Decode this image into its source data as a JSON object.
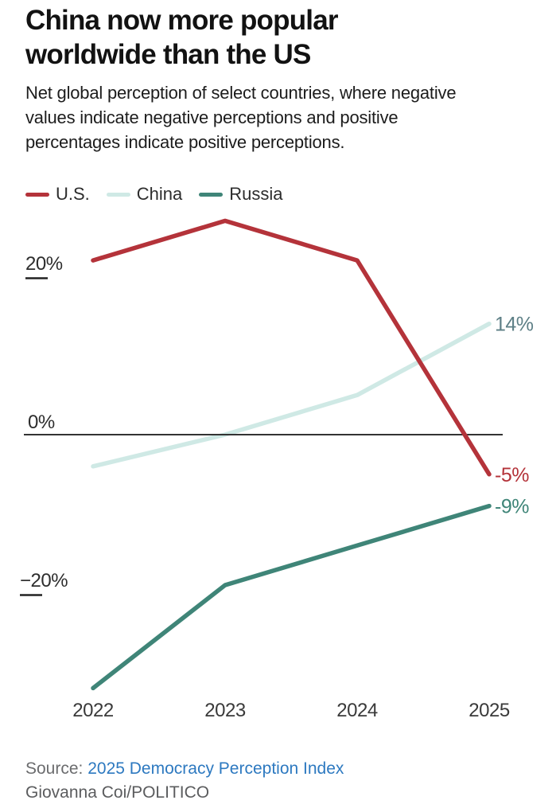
{
  "header": {
    "title_lines": [
      "China now more popular",
      "worldwide than the US"
    ],
    "subtitle": "Net global perception of select countries, where negative values indicate negative perceptions and positive percentages indicate positive perceptions."
  },
  "chart_data": {
    "type": "line",
    "title": "China now more popular worldwide than the US",
    "categories": [
      "2022",
      "2023",
      "2024",
      "2025"
    ],
    "series": [
      {
        "name": "U.S.",
        "color": "#b4333a",
        "label_color": "#b4333a",
        "values": [
          22,
          27,
          22,
          -5
        ],
        "end_label": "-5%"
      },
      {
        "name": "China",
        "color": "#cfe9e5",
        "label_color": "#5d7f86",
        "values": [
          -4,
          0,
          5,
          14
        ],
        "end_label": "14%"
      },
      {
        "name": "Russia",
        "color": "#3f8578",
        "label_color": "#3f8578",
        "values": [
          -32,
          -19,
          -14,
          -9
        ],
        "end_label": "-9%"
      }
    ],
    "yticks": [
      {
        "value": 20,
        "label": "20%"
      },
      {
        "value": 0,
        "label": "0%"
      },
      {
        "value": -20,
        "label": "−20%"
      }
    ],
    "ylim": [
      -35,
      30
    ],
    "xlabel": "",
    "ylabel": "",
    "grid": "zero-line-only",
    "legend_position": "top-left",
    "axis_color": "#333333"
  },
  "footer": {
    "source_prefix": "Source:",
    "source_link": "2025 Democracy Perception Index",
    "link_color": "#2d79c0",
    "byline": "Giovanna Coi/POLITICO"
  }
}
